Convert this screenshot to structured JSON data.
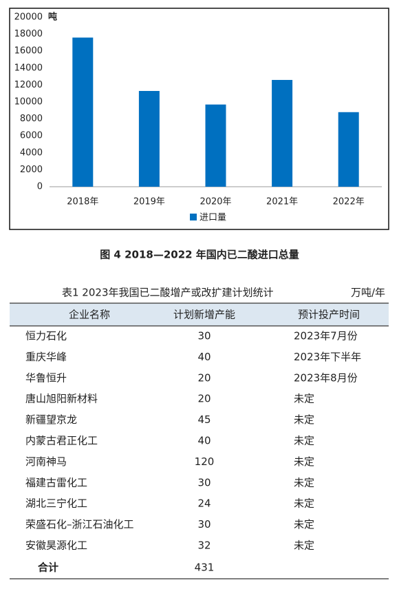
{
  "chart_data": {
    "type": "bar",
    "unit_label": "吨",
    "categories": [
      "2018年",
      "2019年",
      "2020年",
      "2021年",
      "2022年"
    ],
    "series": [
      {
        "name": "进口量",
        "color": "#0070c0",
        "values": [
          17600,
          11300,
          9700,
          12600,
          8800
        ]
      }
    ],
    "ylim": [
      0,
      20000
    ],
    "yticks": [
      0,
      2000,
      4000,
      6000,
      8000,
      10000,
      12000,
      14000,
      16000,
      18000,
      20000
    ],
    "grid": false,
    "legend": "bottom"
  },
  "figure_caption": "图 4  2018—2022 年国内已二酸进口总量",
  "table": {
    "title": "表1  2023年我国已二酸增产或改扩建计划统计",
    "unit": "万吨/年",
    "header": [
      "企业名称",
      "计划新增产能",
      "预计投产时间"
    ],
    "rows": [
      [
        "恒力石化",
        30,
        "2023年7月份"
      ],
      [
        "重庆华峰",
        40,
        "2023年下半年"
      ],
      [
        "华鲁恒升",
        20,
        "2023年8月份"
      ],
      [
        "唐山旭阳新材料",
        20,
        "未定"
      ],
      [
        "新疆望京龙",
        45,
        "未定"
      ],
      [
        "内蒙古君正化工",
        40,
        "未定"
      ],
      [
        "河南神马",
        120,
        "未定"
      ],
      [
        "福建古雷化工",
        30,
        "未定"
      ],
      [
        "湖北三宁化工",
        24,
        "未定"
      ],
      [
        "荣盛石化–浙江石油化工",
        30,
        "未定"
      ],
      [
        "安徽昊源化工",
        32,
        "未定"
      ]
    ],
    "total": [
      "合计",
      431
    ]
  }
}
